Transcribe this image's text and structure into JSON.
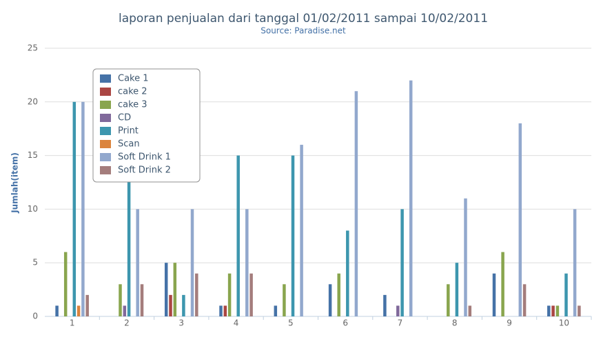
{
  "chart_data": {
    "type": "bar",
    "title": "laporan penjualan dari tanggal 01/02/2011 sampai 10/02/2011",
    "subtitle": "Source: Paradise.net",
    "y_label": "Jumlah(item)",
    "categories": [
      "1",
      "2",
      "3",
      "4",
      "5",
      "6",
      "7",
      "8",
      "9",
      "10"
    ],
    "series": [
      {
        "name": "Cake 1",
        "color": "#4572A7",
        "values": [
          1,
          0,
          5,
          1,
          1,
          3,
          2,
          0,
          4,
          1
        ]
      },
      {
        "name": "cake 2",
        "color": "#AA4643",
        "values": [
          0,
          0,
          2,
          1,
          0,
          0,
          0,
          0,
          0,
          1
        ]
      },
      {
        "name": "cake 3",
        "color": "#89A54E",
        "values": [
          6,
          3,
          5,
          4,
          3,
          4,
          0,
          3,
          6,
          1
        ]
      },
      {
        "name": "CD",
        "color": "#80699B",
        "values": [
          0,
          1,
          0,
          0,
          0,
          0,
          1,
          0,
          0,
          0
        ]
      },
      {
        "name": "Print",
        "color": "#3D96AE",
        "values": [
          20,
          15,
          2,
          15,
          15,
          8,
          10,
          5,
          0,
          4
        ]
      },
      {
        "name": "Scan",
        "color": "#DB843D",
        "values": [
          1,
          0,
          0,
          0,
          0,
          0,
          0,
          0,
          0,
          0
        ]
      },
      {
        "name": "Soft Drink 1",
        "color": "#92A8CD",
        "values": [
          20,
          10,
          10,
          10,
          16,
          21,
          22,
          11,
          18,
          10
        ]
      },
      {
        "name": "Soft Drink 2",
        "color": "#A47D7C",
        "values": [
          2,
          3,
          4,
          4,
          0,
          0,
          0,
          1,
          3,
          1
        ]
      }
    ],
    "ylim": [
      0,
      25
    ],
    "yticks": [
      0,
      5,
      10,
      15,
      20,
      25
    ],
    "grid": true,
    "legend": "top-left"
  }
}
